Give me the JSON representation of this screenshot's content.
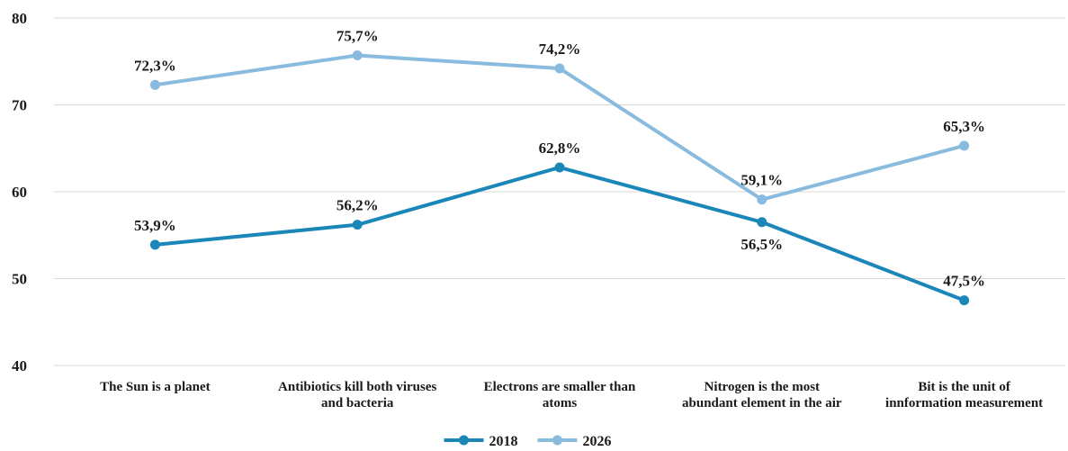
{
  "chart_data": {
    "type": "line",
    "title": "",
    "xlabel": "",
    "ylabel": "",
    "ylim": [
      40,
      80
    ],
    "yticks": [
      40,
      50,
      60,
      70,
      80
    ],
    "grid": true,
    "legend_position": "bottom",
    "categories": [
      [
        "The Sun is a planet"
      ],
      [
        "Antibiotics kill both viruses",
        "and bacteria"
      ],
      [
        "Electrons are smaller than",
        "atoms"
      ],
      [
        "Nitrogen is the most",
        "abundant element in the air"
      ],
      [
        "Bit is the unit of",
        "innformation measurement"
      ]
    ],
    "series": [
      {
        "name": "2018",
        "color": "#1a87b8",
        "values": [
          53.9,
          56.2,
          62.8,
          56.5,
          47.5
        ],
        "labels": [
          "53,9%",
          "56,2%",
          "62,8%",
          "56,5%",
          "47,5%"
        ],
        "label_side": [
          "above",
          "above",
          "above",
          "below",
          "above"
        ]
      },
      {
        "name": "2026",
        "color": "#89bbdf",
        "values": [
          72.3,
          75.7,
          74.2,
          59.1,
          65.3
        ],
        "labels": [
          "72,3%",
          "75,7%",
          "74,2%",
          "59,1%",
          "65,3%"
        ],
        "label_side": [
          "above",
          "above",
          "above",
          "above",
          "above"
        ]
      }
    ]
  }
}
